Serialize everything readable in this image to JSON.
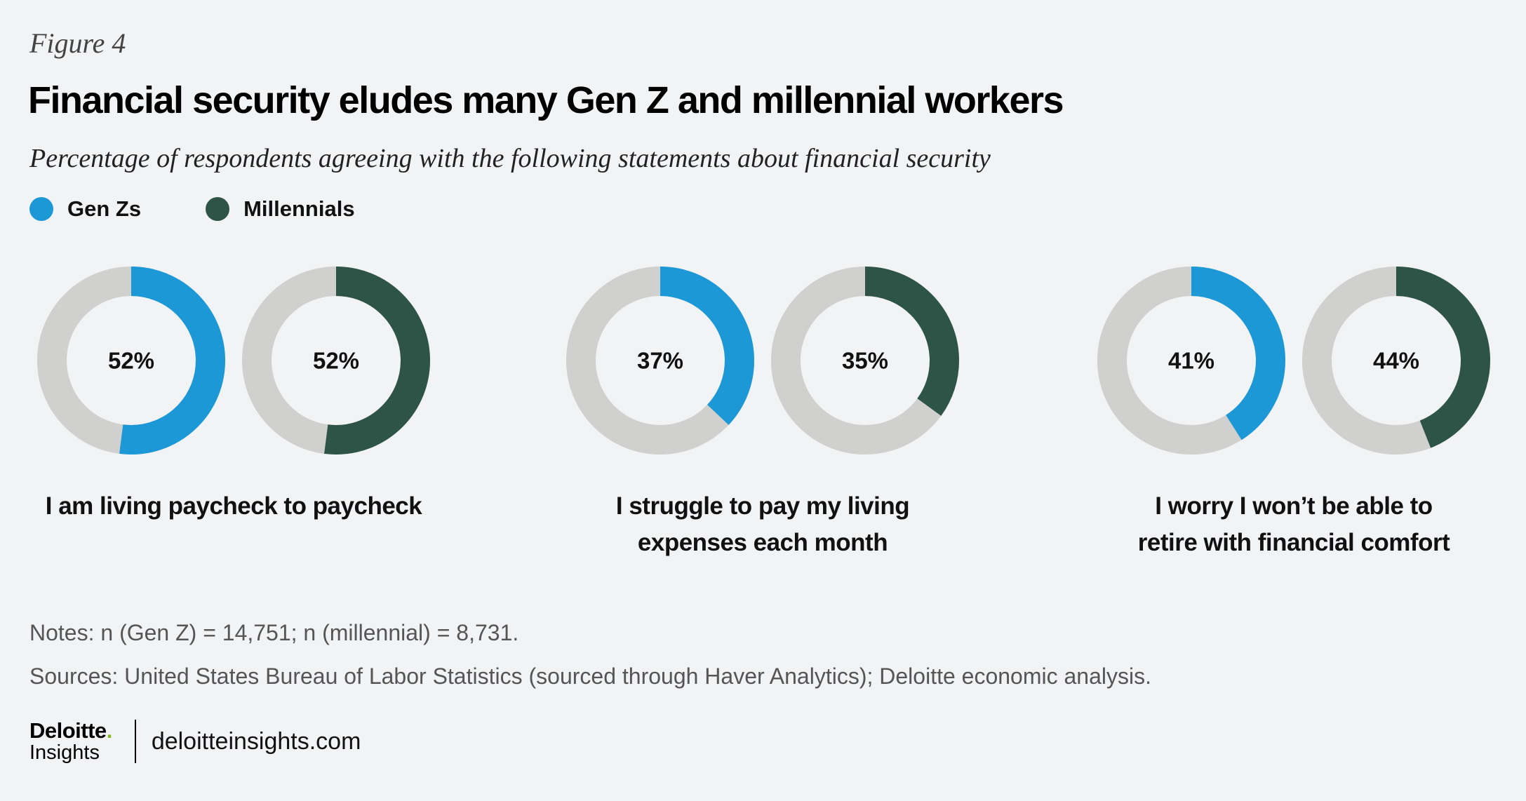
{
  "figure_label": "Figure 4",
  "colors": {
    "genz": "#1b98d5",
    "millennial": "#2d5446",
    "track": "#d0d0ce"
  },
  "chart_data": {
    "type": "pie",
    "variant": "donut",
    "title": "Financial security eludes many Gen Z and millennial workers",
    "subtitle": "Percentage of respondents agreeing with the following statements about financial security",
    "legend": [
      {
        "key": "genz",
        "name": "Gen Zs"
      },
      {
        "key": "millennial",
        "name": "Millennials"
      }
    ],
    "legend_position": "top-left",
    "groups": [
      {
        "caption": [
          "I am living paycheck to paycheck"
        ],
        "values": [
          {
            "series": "genz",
            "value": 52,
            "label": "52%"
          },
          {
            "series": "millennial",
            "value": 52,
            "label": "52%"
          }
        ]
      },
      {
        "caption": [
          "I struggle to pay my living",
          "expenses each month"
        ],
        "values": [
          {
            "series": "genz",
            "value": 37,
            "label": "37%"
          },
          {
            "series": "millennial",
            "value": 35,
            "label": "35%"
          }
        ]
      },
      {
        "caption": [
          "I worry I won’t be able to",
          "retire with financial comfort"
        ],
        "values": [
          {
            "series": "genz",
            "value": 41,
            "label": "41%"
          },
          {
            "series": "millennial",
            "value": 44,
            "label": "44%"
          }
        ]
      }
    ]
  },
  "notes": "Notes: n (Gen Z) = 14,751; n (millennial) = 8,731.",
  "sources": "Sources: United States Bureau of Labor Statistics (sourced through Haver Analytics);  Deloitte economic analysis.",
  "footer": {
    "logo_top": "Deloitte",
    "logo_dot": ".",
    "logo_bottom": "Insights",
    "site": "deloitteinsights.com"
  }
}
